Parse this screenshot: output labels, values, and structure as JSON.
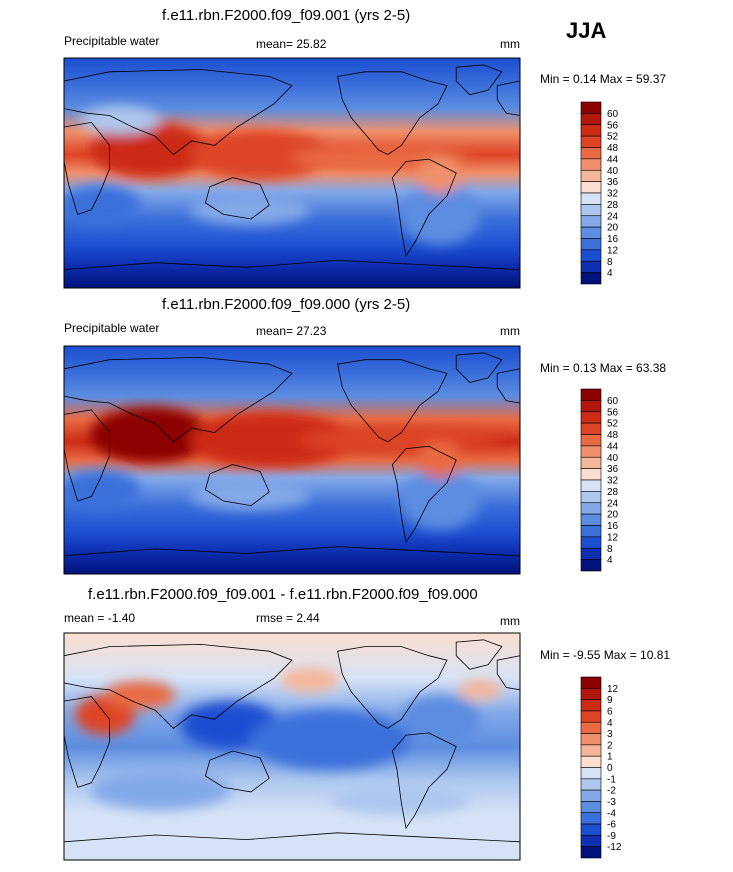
{
  "season_label": "JJA",
  "chart_data": [
    {
      "type": "heatmap",
      "title": "f.e11.rbn.F2000.f09_f09.001 (yrs 2-5)",
      "variable": "Precipitable water",
      "mean_text": "mean=  25.82",
      "units": "mm",
      "minmax_text": "Min =  0.14 Max =  59.37",
      "min": 0.14,
      "max": 59.37,
      "mean": 25.82,
      "colorbar_levels": [
        "60",
        "56",
        "52",
        "48",
        "44",
        "40",
        "36",
        "32",
        "28",
        "24",
        "20",
        "16",
        "12",
        "8",
        "4"
      ],
      "colors": [
        "#8b0000",
        "#b1170c",
        "#cc2c16",
        "#dd4425",
        "#e96a43",
        "#f0906c",
        "#f6b69a",
        "#fcded0",
        "#d6e3f6",
        "#adc7ef",
        "#84a9e8",
        "#5c8de0",
        "#3b6fda",
        "#1c4ed0",
        "#0e2fb0",
        "#00127a"
      ]
    },
    {
      "type": "heatmap",
      "title": "f.e11.rbn.F2000.f09_f09.000 (yrs 2-5)",
      "variable": "Precipitable water",
      "mean_text": "mean=  27.23",
      "units": "mm",
      "minmax_text": "Min =  0.13 Max =  63.38",
      "min": 0.13,
      "max": 63.38,
      "mean": 27.23,
      "colorbar_levels": [
        "60",
        "56",
        "52",
        "48",
        "44",
        "40",
        "36",
        "32",
        "28",
        "24",
        "20",
        "16",
        "12",
        "8",
        "4"
      ],
      "colors": [
        "#8b0000",
        "#b1170c",
        "#cc2c16",
        "#dd4425",
        "#e96a43",
        "#f0906c",
        "#f6b69a",
        "#fcded0",
        "#d6e3f6",
        "#adc7ef",
        "#84a9e8",
        "#5c8de0",
        "#3b6fda",
        "#1c4ed0",
        "#0e2fb0",
        "#00127a"
      ]
    },
    {
      "type": "heatmap",
      "title": "f.e11.rbn.F2000.f09_f09.001 - f.e11.rbn.F2000.f09_f09.000",
      "mean_text": "mean = -1.40",
      "rmse_text": "rmse =  2.44",
      "units": "mm",
      "minmax_text": "Min = -9.55 Max =  10.81",
      "min": -9.55,
      "max": 10.81,
      "mean": -1.4,
      "rmse": 2.44,
      "colorbar_levels": [
        "12",
        "9",
        "6",
        "4",
        "3",
        "2",
        "1",
        "0",
        "-1",
        "-2",
        "-3",
        "-4",
        "-6",
        "-9",
        "-12"
      ],
      "colors": [
        "#8b0000",
        "#b1170c",
        "#cc2c16",
        "#dd4425",
        "#e96a43",
        "#f0906c",
        "#f6b69a",
        "#fcded0",
        "#d6e3f6",
        "#adc7ef",
        "#84a9e8",
        "#5c8de0",
        "#3b6fda",
        "#1c4ed0",
        "#0e2fb0",
        "#00127a"
      ]
    }
  ]
}
